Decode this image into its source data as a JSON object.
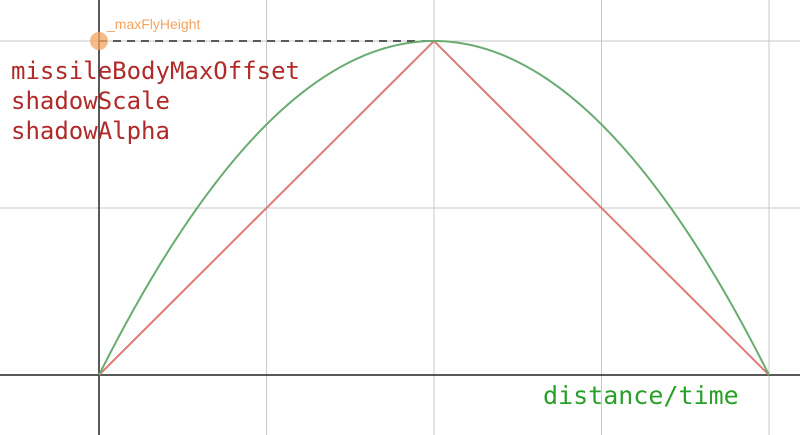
{
  "chart_data": {
    "type": "line",
    "x": [
      0,
      1,
      2,
      3,
      4
    ],
    "xlim": [
      -0.6,
      4.2
    ],
    "ylim": [
      -0.35,
      1.2
    ],
    "grid": true,
    "xlabel": "distance/time",
    "ylabel": "",
    "series": [
      {
        "name": "",
        "color": "#e07a76",
        "shape": "triangle",
        "points": [
          [
            0,
            0
          ],
          [
            2,
            1
          ],
          [
            4,
            0
          ]
        ]
      },
      {
        "name": "",
        "color": "#6aab72",
        "shape": "parabola",
        "points": [
          [
            0,
            0
          ],
          [
            1,
            0.75
          ],
          [
            2,
            1
          ],
          [
            3,
            0.75
          ],
          [
            4,
            0
          ]
        ]
      }
    ],
    "annotations": [
      {
        "label": "_maxFlyHeight",
        "x": 0,
        "y": 1,
        "color": "#f4a460",
        "dashed_to_x": 2
      }
    ],
    "legend": {
      "placement": "top-left",
      "entries": [
        "missileBodyMaxOffset",
        "shadowScale",
        "shadowAlpha"
      ],
      "color": "#b02a2a"
    },
    "xlabel_color": "#2aa02a"
  }
}
